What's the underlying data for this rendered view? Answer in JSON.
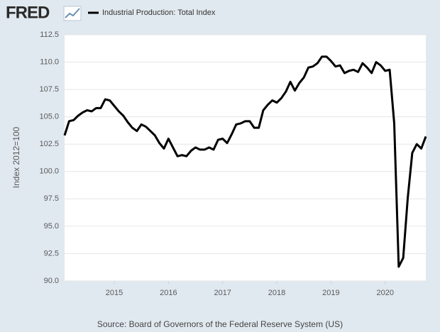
{
  "chart_data": {
    "type": "line",
    "logo": "FRED",
    "ylabel": "Index 2012=100",
    "source": "Source: Board of Governors of the Federal Reserve System (US)",
    "x": [
      2014.083,
      2014.167,
      2014.25,
      2014.333,
      2014.417,
      2014.5,
      2014.583,
      2014.667,
      2014.75,
      2014.833,
      2014.917,
      2015,
      2015.083,
      2015.167,
      2015.25,
      2015.333,
      2015.417,
      2015.5,
      2015.583,
      2015.667,
      2015.75,
      2015.833,
      2015.917,
      2016,
      2016.083,
      2016.167,
      2016.25,
      2016.333,
      2016.417,
      2016.5,
      2016.583,
      2016.667,
      2016.75,
      2016.833,
      2016.917,
      2017,
      2017.083,
      2017.167,
      2017.25,
      2017.333,
      2017.417,
      2017.5,
      2017.583,
      2017.667,
      2017.75,
      2017.833,
      2017.917,
      2018,
      2018.083,
      2018.167,
      2018.25,
      2018.333,
      2018.417,
      2018.5,
      2018.583,
      2018.667,
      2018.75,
      2018.833,
      2018.917,
      2019,
      2019.083,
      2019.167,
      2019.25,
      2019.333,
      2019.417,
      2019.5,
      2019.583,
      2019.667,
      2019.75,
      2019.833,
      2019.917,
      2020,
      2020.083,
      2020.167,
      2020.25,
      2020.333,
      2020.417,
      2020.5,
      2020.583,
      2020.667,
      2020.75
    ],
    "series": [
      {
        "name": "Industrial Production: Total Index",
        "color": "#000000",
        "values": [
          103.3,
          104.6,
          104.7,
          105.1,
          105.4,
          105.6,
          105.5,
          105.8,
          105.8,
          106.6,
          106.5,
          106.0,
          105.5,
          105.1,
          104.5,
          104.0,
          103.7,
          104.3,
          104.1,
          103.7,
          103.3,
          102.6,
          102.1,
          103.0,
          102.2,
          101.4,
          101.5,
          101.4,
          101.9,
          102.2,
          102.0,
          102.0,
          102.2,
          102.0,
          102.9,
          103.0,
          102.6,
          103.4,
          104.3,
          104.4,
          104.6,
          104.6,
          104.0,
          104.0,
          105.6,
          106.1,
          106.5,
          106.3,
          106.7,
          107.3,
          108.2,
          107.4,
          108.1,
          108.6,
          109.5,
          109.6,
          109.9,
          110.5,
          110.5,
          110.1,
          109.6,
          109.7,
          109.0,
          109.2,
          109.3,
          109.1,
          109.9,
          109.5,
          109.0,
          110.0,
          109.7,
          109.2,
          109.3,
          104.4,
          91.3,
          92.1,
          97.6,
          101.7,
          102.5,
          102.1,
          103.2
        ]
      }
    ],
    "xlim": [
      2014.083,
      2020.75
    ],
    "xticks": [
      2015,
      2016,
      2017,
      2018,
      2019,
      2020
    ],
    "ylim": [
      90,
      112.5
    ],
    "yticks": [
      {
        "value": 90,
        "label": "90.0"
      },
      92.5,
      {
        "value": 95,
        "label": "95.0"
      },
      97.5,
      {
        "value": 100,
        "label": "100.0"
      },
      102.5,
      {
        "value": 105,
        "label": "105.0"
      },
      107.5,
      {
        "value": 110,
        "label": "110.0"
      },
      112.5
    ],
    "grid": true
  }
}
